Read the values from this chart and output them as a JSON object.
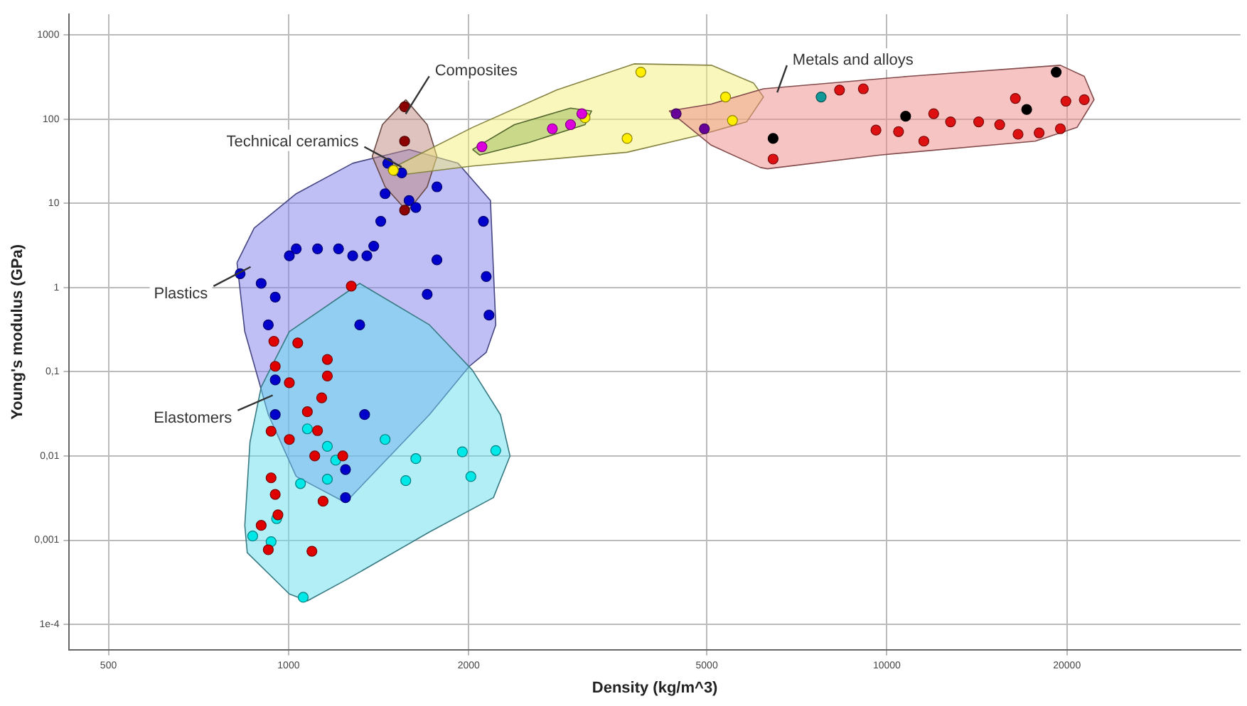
{
  "chart_data": {
    "type": "scatter",
    "xlabel": "Density (kg/m^3)",
    "ylabel": "Young's modulus (GPa)",
    "log": "xy",
    "grid": true,
    "legend": false,
    "marker": "circle",
    "xlim": [
      430,
      39000
    ],
    "ylim": [
      5e-05,
      1760
    ],
    "xticks": [
      500,
      1000,
      2000,
      5000,
      10000,
      20000
    ],
    "yticks": [
      {
        "value": 0.0001,
        "label": "1e-4"
      },
      {
        "value": 0.001,
        "label": "0,001"
      },
      {
        "value": 0.01,
        "label": "0,01"
      },
      {
        "value": 0.1,
        "label": "0,1"
      },
      1,
      10,
      100,
      1000
    ],
    "series": [
      {
        "type": "area",
        "name": "Plastics",
        "marker": "none",
        "color": "#8080ee",
        "x": [
          820,
          876,
          1030,
          1280,
          1590,
          1920,
          2175,
          2220,
          2140,
          2005,
          1720,
          1245,
          1030,
          925,
          845,
          820
        ],
        "values": [
          1.97,
          5.07,
          13,
          29.9,
          43.6,
          29.9,
          10.8,
          0.36,
          0.17,
          0.116,
          0.031,
          0.0028,
          0.0057,
          0.031,
          0.3,
          1.97
        ]
      },
      {
        "type": "area",
        "name": "Elastomers",
        "marker": "none",
        "color": "#66ddee",
        "x": [
          900,
          1003,
          1315,
          1720,
          2030,
          2260,
          2345,
          2200,
          1720,
          1245,
          1075,
          1003,
          853,
          845,
          862,
          900
        ],
        "values": [
          0.066,
          0.3,
          1.12,
          0.36,
          0.104,
          0.031,
          0.01,
          0.0032,
          0.00125,
          0.000335,
          0.00019,
          0.00023,
          0.00071,
          0.0015,
          0.0146,
          0.066
        ]
      },
      {
        "type": "area",
        "name": "Composites",
        "marker": "none",
        "color": "#c08880",
        "x": [
          1570,
          1705,
          1770,
          1705,
          1580,
          1450,
          1380,
          1435,
          1570
        ],
        "values": [
          170,
          85.9,
          36.1,
          15.7,
          7.97,
          15.7,
          36.1,
          85.9,
          170
        ]
      },
      {
        "type": "area",
        "name": "Technical ceramics",
        "marker": "none",
        "color": "#f4f07a",
        "x": [
          1465,
          2030,
          2805,
          3780,
          5090,
          5990,
          6220,
          5830,
          4825,
          3680,
          2030,
          1505,
          1465
        ],
        "values": [
          24.7,
          79.7,
          221,
          453,
          436,
          267,
          183,
          92.7,
          63.6,
          40.4,
          27.7,
          21.3,
          24.7
        ]
      },
      {
        "type": "area",
        "marker": "none",
        "color": "#99bb55",
        "x": [
          2030,
          2385,
          2960,
          3210,
          3130,
          2520,
          2085,
          2030
        ],
        "values": [
          43.6,
          85.9,
          135,
          125,
          85.9,
          52.6,
          37.5,
          43.6
        ]
      },
      {
        "type": "area",
        "name": "Metals and alloys",
        "marker": "none",
        "color": "#f08a8a",
        "x": [
          4325,
          5090,
          6220,
          10860,
          19500,
          21380,
          22200,
          20800,
          17700,
          9750,
          6320,
          6150,
          5090,
          4325
        ],
        "values": [
          125,
          151,
          229,
          322,
          436,
          322,
          170,
          80,
          54.7,
          37.5,
          25.7,
          26.6,
          48.9,
          125
        ]
      },
      {
        "color": "#0000cc",
        "x": [
          830,
          900,
          950,
          1003,
          1030,
          1118,
          1212,
          1280,
          1352,
          1388,
          1426,
          1450,
          1465,
          1546,
          1590,
          1632,
          1770,
          2117,
          1770,
          1705,
          2140,
          2163,
          925,
          1315,
          950,
          950,
          1340,
          1245,
          1245
        ],
        "values": [
          1.46,
          1.12,
          0.77,
          2.38,
          2.88,
          2.88,
          2.88,
          2.38,
          2.38,
          3.1,
          6.12,
          13,
          29.9,
          23,
          10.8,
          8.93,
          15.7,
          6.12,
          2.13,
          0.83,
          1.35,
          0.47,
          0.36,
          0.36,
          0.08,
          0.031,
          0.031,
          0.0069,
          0.0032
        ]
      },
      {
        "color": "#00e8e8",
        "x": [
          1075,
          1161,
          1047,
          1161,
          1199,
          1450,
          1632,
          1570,
          1952,
          2017,
          2220,
          955,
          871,
          935,
          1058
        ],
        "values": [
          0.021,
          0.013,
          0.0047,
          0.0053,
          0.0089,
          0.0157,
          0.0093,
          0.0051,
          0.0112,
          0.0057,
          0.0116,
          0.0018,
          0.00112,
          0.00096,
          0.00021
        ]
      },
      {
        "color": "#e00000",
        "x": [
          1036,
          945,
          950,
          1003,
          1161,
          1161,
          1136,
          1118,
          935,
          1003,
          1075,
          1106,
          1232,
          935,
          950,
          900,
          925,
          960,
          1094,
          1142,
          1273
        ],
        "values": [
          0.22,
          0.23,
          0.116,
          0.074,
          0.14,
          0.089,
          0.049,
          0.02,
          0.0197,
          0.0157,
          0.0335,
          0.01,
          0.01,
          0.0055,
          0.0035,
          0.0015,
          0.00077,
          0.002,
          0.00074,
          0.0029,
          1.04
        ]
      },
      {
        "color": "#8b0000",
        "x": [
          1563,
          1563,
          1563
        ],
        "values": [
          140,
          54.7,
          8.28
        ]
      },
      {
        "color": "#ffee00",
        "x": [
          1497,
          3880,
          3680,
          3130,
          5375,
          5520
        ],
        "values": [
          24.7,
          361,
          58.9,
          104,
          183,
          96.4
        ]
      },
      {
        "color": "#dd00dd",
        "x": [
          2105,
          2760,
          2960,
          3092
        ],
        "values": [
          47,
          76.8,
          85.9,
          116
        ]
      },
      {
        "color": "#660099",
        "x": [
          4445,
          4955
        ],
        "values": [
          116,
          76.8
        ]
      },
      {
        "color": "#119999",
        "x": [
          7765
        ],
        "values": [
          183
        ]
      },
      {
        "color": "#dd1111",
        "x": [
          8335,
          9135,
          9590,
          10460,
          11530,
          11975,
          12780,
          14240,
          15440,
          16570,
          17970,
          19500,
          19920,
          21380,
          16400,
          6455
        ],
        "values": [
          221,
          229,
          74,
          71,
          54.7,
          116,
          92.7,
          92.7,
          85.9,
          66.1,
          68.6,
          76.8,
          163,
          170,
          176,
          33.5
        ]
      },
      {
        "color": "#000000",
        "x": [
          6455,
          19190,
          17130,
          10750
        ],
        "values": [
          58.9,
          361,
          130,
          108
        ]
      }
    ]
  }
}
